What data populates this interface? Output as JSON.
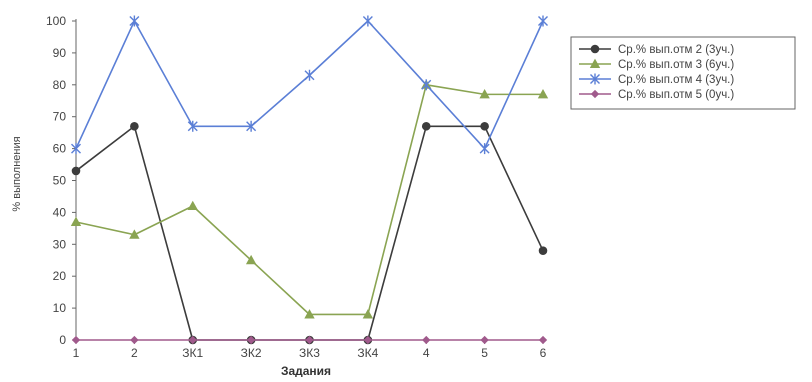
{
  "chart_data": {
    "type": "line",
    "title": "",
    "xlabel": "Задания",
    "ylabel": "% выполнения",
    "categories": [
      "1",
      "2",
      "ЗК1",
      "ЗК2",
      "ЗК3",
      "ЗК4",
      "4",
      "5",
      "6"
    ],
    "ylim": [
      0,
      100
    ],
    "yticks": [
      0,
      10,
      20,
      30,
      40,
      50,
      60,
      70,
      80,
      90,
      100
    ],
    "grid": false,
    "legend_position": "right",
    "series": [
      {
        "name": "Ср.% вып.отм 2 (3уч.)",
        "color": "#3c3c3c",
        "marker": "circle",
        "values": [
          53,
          67,
          0,
          0,
          0,
          0,
          67,
          67,
          28
        ]
      },
      {
        "name": "Ср.% вып.отм 3 (6уч.)",
        "color": "#8aa452",
        "marker": "triangle",
        "values": [
          37,
          33,
          42,
          25,
          8,
          8,
          80,
          77,
          77
        ]
      },
      {
        "name": "Ср.% вып.отм 4 (3уч.)",
        "color": "#5b7fd6",
        "marker": "asterisk",
        "values": [
          60,
          100,
          67,
          67,
          83,
          100,
          80,
          60,
          100
        ]
      },
      {
        "name": "Ср.% вып.отм 5 (0уч.)",
        "color": "#a05a8c",
        "marker": "diamond",
        "values": [
          0,
          0,
          0,
          0,
          0,
          0,
          0,
          0,
          0
        ]
      }
    ]
  }
}
